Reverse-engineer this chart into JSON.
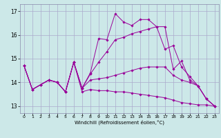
{
  "background_color": "#cce8e8",
  "grid_color": "#aaaacc",
  "line_color": "#990099",
  "xlabel": "Windchill (Refroidissement éolien,°C)",
  "xlim": [
    -0.5,
    23.5
  ],
  "ylim": [
    12.7,
    17.3
  ],
  "yticks": [
    13,
    14,
    15,
    16,
    17
  ],
  "xticks": [
    0,
    1,
    2,
    3,
    4,
    5,
    6,
    7,
    8,
    9,
    10,
    11,
    12,
    13,
    14,
    15,
    16,
    17,
    18,
    19,
    20,
    21,
    22,
    23
  ],
  "line1": [
    14.7,
    13.7,
    13.9,
    14.1,
    14.0,
    13.6,
    14.85,
    13.75,
    14.4,
    15.85,
    15.8,
    16.9,
    16.55,
    16.4,
    16.65,
    16.65,
    16.35,
    15.4,
    15.55,
    14.65,
    14.25,
    13.85,
    13.3,
    13.0
  ],
  "line2": [
    14.7,
    13.7,
    13.9,
    14.1,
    14.0,
    13.6,
    14.85,
    13.75,
    14.35,
    14.85,
    15.3,
    15.8,
    15.9,
    16.05,
    16.15,
    16.25,
    16.35,
    16.35,
    14.55,
    14.9,
    14.1,
    13.85,
    13.3,
    13.0
  ],
  "line3": [
    14.7,
    13.7,
    13.9,
    14.1,
    14.0,
    13.6,
    14.85,
    13.75,
    14.1,
    14.15,
    14.2,
    14.3,
    14.4,
    14.5,
    14.6,
    14.65,
    14.65,
    14.65,
    14.3,
    14.1,
    14.0,
    13.85,
    13.3,
    13.0
  ],
  "line4": [
    14.7,
    13.7,
    13.9,
    14.1,
    14.0,
    13.6,
    14.85,
    13.6,
    13.7,
    13.65,
    13.65,
    13.6,
    13.6,
    13.55,
    13.5,
    13.45,
    13.4,
    13.35,
    13.25,
    13.15,
    13.1,
    13.05,
    13.05,
    13.0
  ]
}
